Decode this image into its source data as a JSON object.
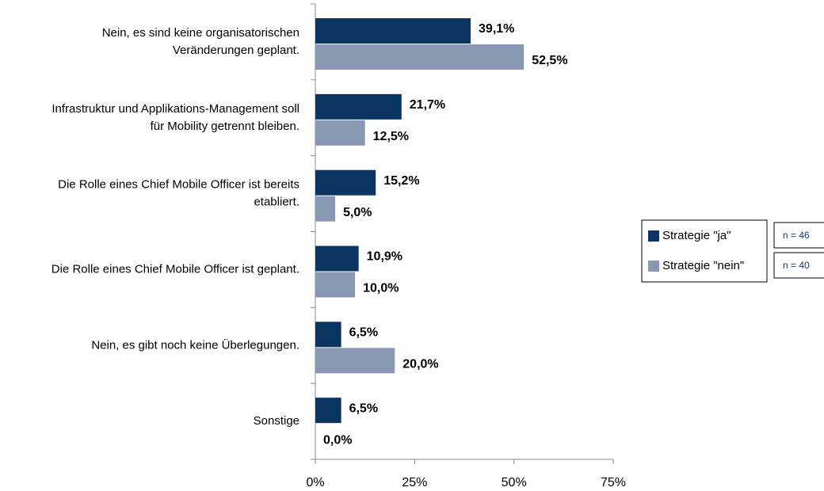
{
  "chart_data": {
    "type": "bar",
    "orientation": "horizontal",
    "categories": [
      "Nein, es sind keine organisatorischen\nVeränderungen  geplant.",
      "Infrastruktur und Applikations-Management  soll\nfür Mobility getrennt  bleiben.",
      "Die Rolle eines Chief Mobile Officer ist bereits\netabliert.",
      "Die Rolle eines Chief Mobile Officer ist geplant.",
      "Nein, es gibt noch keine Überlegungen.",
      "Sonstige"
    ],
    "series": [
      {
        "name": "Strategie \"ja\"",
        "color": "#0b3561",
        "values": [
          39.1,
          21.7,
          15.2,
          10.9,
          6.5,
          6.5
        ],
        "value_labels": [
          "39,1%",
          "21,7%",
          "15,2%",
          "10,9%",
          "6,5%",
          "6,5%"
        ]
      },
      {
        "name": "Strategie \"nein\"",
        "color": "#8a97b1",
        "values": [
          52.5,
          12.5,
          5.0,
          10.0,
          20.0,
          0.0
        ],
        "value_labels": [
          "52,5%",
          "12,5%",
          "5,0%",
          "10,0%",
          "20,0%",
          "0,0%"
        ]
      }
    ],
    "annotations": [
      "n = 46",
      "n = 40"
    ],
    "xlim": [
      0,
      75
    ],
    "xticks": [
      {
        "value": 0,
        "label": "0%"
      },
      {
        "value": 25,
        "label": "25%"
      },
      {
        "value": 50,
        "label": "50%"
      },
      {
        "value": 75,
        "label": "75%"
      }
    ],
    "legend": "right"
  }
}
